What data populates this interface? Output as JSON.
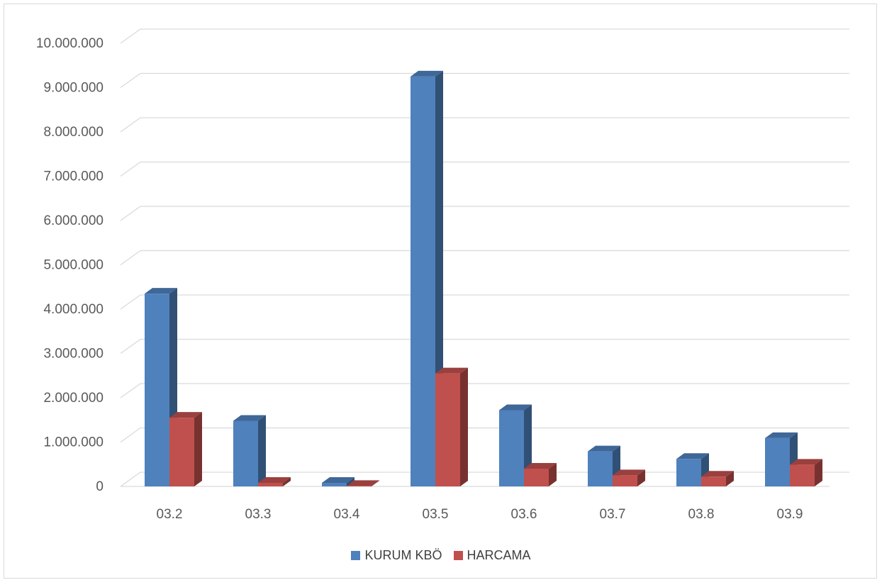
{
  "chart_data": {
    "type": "bar",
    "title": "",
    "xlabel": "",
    "ylabel": "",
    "categories": [
      "03.2",
      "03.3",
      "03.4",
      "03.5",
      "03.6",
      "03.7",
      "03.8",
      "03.9"
    ],
    "series": [
      {
        "name": "KURUM KBÖ",
        "color": "#4f81bd",
        "values": [
          4350000,
          1480000,
          80000,
          9250000,
          1720000,
          790000,
          620000,
          1090000
        ]
      },
      {
        "name": "HARCAMA",
        "color": "#c0504d",
        "values": [
          1550000,
          80000,
          10000,
          2550000,
          400000,
          250000,
          220000,
          490000
        ]
      }
    ],
    "ylim": [
      0,
      10000000
    ],
    "yticks": [
      "0",
      "1.000.000",
      "2.000.000",
      "3.000.000",
      "4.000.000",
      "5.000.000",
      "6.000.000",
      "7.000.000",
      "8.000.000",
      "9.000.000",
      "10.000.000"
    ],
    "grid": true,
    "legend": "bottom"
  }
}
